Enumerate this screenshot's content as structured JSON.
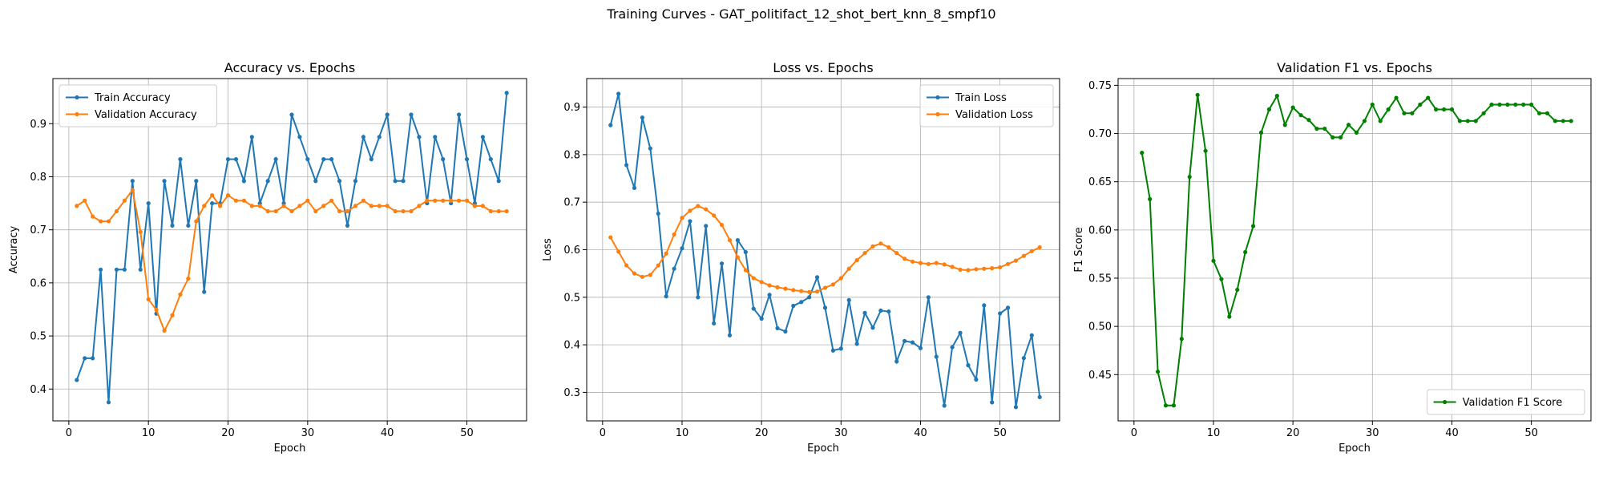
{
  "suptitle": "Training Curves - GAT_politifact_12_shot_bert_knn_8_smpf10",
  "chart_data": [
    {
      "type": "line",
      "title": "Accuracy vs. Epochs",
      "xlabel": "Epoch",
      "ylabel": "Accuracy",
      "xlim": [
        -2,
        57.5
      ],
      "ylim": [
        0.34,
        0.985
      ],
      "xticks": [
        0,
        10,
        20,
        30,
        40,
        50
      ],
      "yticks": [
        0.4,
        0.5,
        0.6,
        0.7,
        0.8,
        0.9
      ],
      "grid": true,
      "legend": "upper left",
      "series": [
        {
          "name": "Train Accuracy",
          "color": "#1f77b4",
          "x": [
            1,
            2,
            3,
            4,
            5,
            6,
            7,
            8,
            9,
            10,
            11,
            12,
            13,
            14,
            15,
            16,
            17,
            18,
            19,
            20,
            21,
            22,
            23,
            24,
            25,
            26,
            27,
            28,
            29,
            30,
            31,
            32,
            33,
            34,
            35,
            36,
            37,
            38,
            39,
            40,
            41,
            42,
            43,
            44,
            45,
            46,
            47,
            48,
            49,
            50,
            51,
            52,
            53,
            54,
            55
          ],
          "values": [
            0.417,
            0.458,
            0.458,
            0.625,
            0.375,
            0.625,
            0.625,
            0.792,
            0.625,
            0.75,
            0.542,
            0.792,
            0.708,
            0.833,
            0.708,
            0.792,
            0.583,
            0.75,
            0.75,
            0.833,
            0.833,
            0.792,
            0.875,
            0.75,
            0.792,
            0.833,
            0.75,
            0.917,
            0.875,
            0.833,
            0.792,
            0.833,
            0.833,
            0.792,
            0.708,
            0.792,
            0.875,
            0.833,
            0.875,
            0.917,
            0.792,
            0.792,
            0.917,
            0.875,
            0.75,
            0.875,
            0.833,
            0.75,
            0.917,
            0.833,
            0.75,
            0.875,
            0.833,
            0.792,
            0.958
          ]
        },
        {
          "name": "Validation Accuracy",
          "color": "#ff7f0e",
          "x": [
            1,
            2,
            3,
            4,
            5,
            6,
            7,
            8,
            9,
            10,
            11,
            12,
            13,
            14,
            15,
            16,
            17,
            18,
            19,
            20,
            21,
            22,
            23,
            24,
            25,
            26,
            27,
            28,
            29,
            30,
            31,
            32,
            33,
            34,
            35,
            36,
            37,
            38,
            39,
            40,
            41,
            42,
            43,
            44,
            45,
            46,
            47,
            48,
            49,
            50,
            51,
            52,
            53,
            54,
            55
          ],
          "values": [
            0.745,
            0.755,
            0.725,
            0.716,
            0.716,
            0.735,
            0.755,
            0.775,
            0.696,
            0.569,
            0.549,
            0.51,
            0.539,
            0.578,
            0.608,
            0.716,
            0.745,
            0.765,
            0.745,
            0.765,
            0.755,
            0.755,
            0.745,
            0.745,
            0.735,
            0.735,
            0.745,
            0.735,
            0.745,
            0.755,
            0.735,
            0.745,
            0.755,
            0.735,
            0.735,
            0.745,
            0.755,
            0.745,
            0.745,
            0.745,
            0.735,
            0.735,
            0.735,
            0.745,
            0.755,
            0.755,
            0.755,
            0.755,
            0.755,
            0.755,
            0.745,
            0.745,
            0.735,
            0.735,
            0.735
          ]
        }
      ]
    },
    {
      "type": "line",
      "title": "Loss vs. Epochs",
      "xlabel": "Epoch",
      "ylabel": "Loss",
      "xlim": [
        -2,
        57.5
      ],
      "ylim": [
        0.24,
        0.96
      ],
      "xticks": [
        0,
        10,
        20,
        30,
        40,
        50
      ],
      "yticks": [
        0.3,
        0.4,
        0.5,
        0.6,
        0.7,
        0.8,
        0.9
      ],
      "grid": true,
      "legend": "upper right",
      "series": [
        {
          "name": "Train Loss",
          "color": "#1f77b4",
          "x": [
            1,
            2,
            3,
            4,
            5,
            6,
            7,
            8,
            9,
            10,
            11,
            12,
            13,
            14,
            15,
            16,
            17,
            18,
            19,
            20,
            21,
            22,
            23,
            24,
            25,
            26,
            27,
            28,
            29,
            30,
            31,
            32,
            33,
            34,
            35,
            36,
            37,
            38,
            39,
            40,
            41,
            42,
            43,
            44,
            45,
            46,
            47,
            48,
            49,
            50,
            51,
            52,
            53,
            54,
            55
          ],
          "values": [
            0.862,
            0.928,
            0.778,
            0.73,
            0.878,
            0.813,
            0.676,
            0.502,
            0.56,
            0.603,
            0.66,
            0.5,
            0.65,
            0.445,
            0.571,
            0.42,
            0.62,
            0.595,
            0.476,
            0.455,
            0.505,
            0.435,
            0.428,
            0.482,
            0.49,
            0.5,
            0.542,
            0.478,
            0.388,
            0.392,
            0.494,
            0.402,
            0.467,
            0.436,
            0.472,
            0.47,
            0.365,
            0.408,
            0.405,
            0.393,
            0.5,
            0.375,
            0.272,
            0.395,
            0.425,
            0.357,
            0.327,
            0.483,
            0.279,
            0.466,
            0.478,
            0.269,
            0.372,
            0.42,
            0.29
          ]
        },
        {
          "name": "Validation Loss",
          "color": "#ff7f0e",
          "x": [
            1,
            2,
            3,
            4,
            5,
            6,
            7,
            8,
            9,
            10,
            11,
            12,
            13,
            14,
            15,
            16,
            17,
            18,
            19,
            20,
            21,
            22,
            23,
            24,
            25,
            26,
            27,
            28,
            29,
            30,
            31,
            32,
            33,
            34,
            35,
            36,
            37,
            38,
            39,
            40,
            41,
            42,
            43,
            44,
            45,
            46,
            47,
            48,
            49,
            50,
            51,
            52,
            53,
            54,
            55
          ],
          "values": [
            0.626,
            0.596,
            0.567,
            0.55,
            0.543,
            0.547,
            0.567,
            0.592,
            0.632,
            0.667,
            0.682,
            0.692,
            0.685,
            0.672,
            0.652,
            0.62,
            0.584,
            0.557,
            0.54,
            0.532,
            0.525,
            0.521,
            0.518,
            0.515,
            0.513,
            0.511,
            0.512,
            0.52,
            0.527,
            0.54,
            0.56,
            0.578,
            0.593,
            0.607,
            0.613,
            0.605,
            0.593,
            0.581,
            0.575,
            0.572,
            0.57,
            0.572,
            0.569,
            0.564,
            0.558,
            0.557,
            0.559,
            0.56,
            0.561,
            0.563,
            0.57,
            0.577,
            0.587,
            0.597,
            0.605
          ]
        }
      ]
    },
    {
      "type": "line",
      "title": "Validation F1 vs. Epochs",
      "xlabel": "Epoch",
      "ylabel": "F1 Score",
      "xlim": [
        -2,
        57.5
      ],
      "ylim": [
        0.402,
        0.757
      ],
      "xticks": [
        0,
        10,
        20,
        30,
        40,
        50
      ],
      "yticks": [
        0.45,
        0.5,
        0.55,
        0.6,
        0.65,
        0.7,
        0.75
      ],
      "grid": true,
      "legend": "lower right",
      "series": [
        {
          "name": "Validation F1 Score",
          "color": "#008000",
          "x": [
            1,
            2,
            3,
            4,
            5,
            6,
            7,
            8,
            9,
            10,
            11,
            12,
            13,
            14,
            15,
            16,
            17,
            18,
            19,
            20,
            21,
            22,
            23,
            24,
            25,
            26,
            27,
            28,
            29,
            30,
            31,
            32,
            33,
            34,
            35,
            36,
            37,
            38,
            39,
            40,
            41,
            42,
            43,
            44,
            45,
            46,
            47,
            48,
            49,
            50,
            51,
            52,
            53,
            54,
            55
          ],
          "values": [
            0.68,
            0.632,
            0.453,
            0.418,
            0.418,
            0.487,
            0.655,
            0.74,
            0.682,
            0.568,
            0.549,
            0.51,
            0.538,
            0.577,
            0.604,
            0.701,
            0.725,
            0.739,
            0.709,
            0.727,
            0.719,
            0.714,
            0.705,
            0.705,
            0.696,
            0.696,
            0.709,
            0.701,
            0.713,
            0.73,
            0.713,
            0.725,
            0.737,
            0.721,
            0.721,
            0.73,
            0.737,
            0.725,
            0.725,
            0.725,
            0.713,
            0.713,
            0.713,
            0.721,
            0.73,
            0.73,
            0.73,
            0.73,
            0.73,
            0.73,
            0.721,
            0.721,
            0.713,
            0.713,
            0.713
          ]
        }
      ]
    }
  ]
}
